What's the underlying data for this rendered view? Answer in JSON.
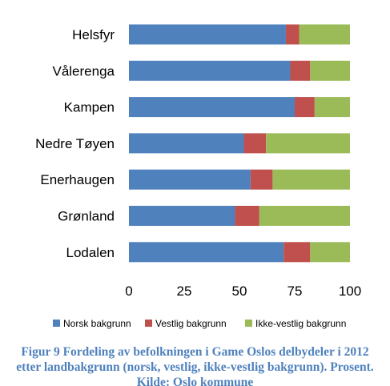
{
  "chart_data": {
    "type": "bar",
    "orientation": "horizontal",
    "stacked": true,
    "categories": [
      "Helsfyr",
      "Vålerenga",
      "Kampen",
      "Nedre Tøyen",
      "Enerhaugen",
      "Grønland",
      "Lodalen"
    ],
    "series": [
      {
        "name": "Norsk bakgrunn",
        "color": "#4f81bd",
        "values": [
          71,
          73,
          75,
          52,
          55,
          48,
          70
        ]
      },
      {
        "name": "Vestlig bakgrunn",
        "color": "#c0504d",
        "values": [
          6,
          9,
          9,
          10,
          10,
          11,
          12
        ]
      },
      {
        "name": "Ikke-vestlig bakgrunn",
        "color": "#9bbb59",
        "values": [
          23,
          18,
          16,
          38,
          35,
          41,
          18
        ]
      }
    ],
    "xlim": [
      0,
      100
    ],
    "xticks": [
      0,
      25,
      50,
      75,
      100
    ],
    "grid": false,
    "legend_position": "bottom",
    "title": "",
    "xlabel": "",
    "ylabel": ""
  },
  "caption": "Figur 9 Fordeling av befolkningen i Game Oslos delbydeler i 2012 etter landbakgrunn (norsk, vestlig, ikke-vestlig bakgrunn). Prosent. Kilde: Oslo kommune"
}
